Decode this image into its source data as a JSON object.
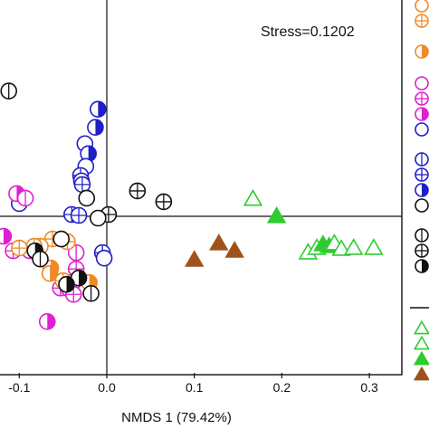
{
  "chart_data": {
    "type": "scatter",
    "title": "",
    "xlabel": "NMDS 1 (79.42%)",
    "ylabel": "",
    "annotation": "Stress=0.1202",
    "xlim": [
      -0.12,
      0.32
    ],
    "ylim": [
      -0.15,
      0.145
    ],
    "x_ticks": [
      "-0.1",
      "0.0",
      "0.1",
      "0.2",
      "0.3"
    ],
    "x_tick_values": [
      -0.1,
      0.0,
      0.1,
      0.2,
      0.3
    ],
    "reference_lines": {
      "x": 0.0,
      "y": 0.0
    },
    "grid": false,
    "legend_position": "right",
    "colors": {
      "blue": "#1f1fc8",
      "magenta": "#e020d0",
      "orange": "#f08a24",
      "black": "#111111",
      "green": "#2ecc2e",
      "brown": "#a0521c"
    },
    "series": [
      {
        "color": "blue",
        "markers": [
          {
            "x": -0.01,
            "y": 0.118,
            "marker": "half-circle"
          },
          {
            "x": -0.013,
            "y": 0.098,
            "marker": "half-circle"
          },
          {
            "x": -0.025,
            "y": 0.08,
            "marker": "circle"
          },
          {
            "x": -0.021,
            "y": 0.069,
            "marker": "half-circle"
          },
          {
            "x": -0.024,
            "y": 0.055,
            "marker": "circle"
          },
          {
            "x": -0.03,
            "y": 0.045,
            "marker": "circle-plus"
          },
          {
            "x": -0.029,
            "y": 0.039,
            "marker": "circle"
          },
          {
            "x": -0.028,
            "y": 0.035,
            "marker": "circle-plus"
          },
          {
            "x": -0.1,
            "y": 0.014,
            "marker": "circle"
          },
          {
            "x": -0.04,
            "y": 0.002,
            "marker": "circle-plus"
          },
          {
            "x": -0.032,
            "y": 0.001,
            "marker": "circle-plus"
          },
          {
            "x": -0.005,
            "y": -0.04,
            "marker": "circle-plus"
          },
          {
            "x": -0.003,
            "y": -0.046,
            "marker": "circle"
          }
        ]
      },
      {
        "color": "magenta",
        "markers": [
          {
            "x": -0.103,
            "y": 0.025,
            "marker": "half-circle"
          },
          {
            "x": -0.093,
            "y": 0.02,
            "marker": "circle-minus"
          },
          {
            "x": -0.118,
            "y": -0.022,
            "marker": "half-circle"
          },
          {
            "x": -0.107,
            "y": -0.038,
            "marker": "circle-plus"
          },
          {
            "x": -0.088,
            "y": -0.038,
            "marker": "circle-plus"
          },
          {
            "x": -0.035,
            "y": -0.04,
            "marker": "circle-minus"
          },
          {
            "x": -0.035,
            "y": -0.058,
            "marker": "circle-plus"
          },
          {
            "x": -0.038,
            "y": -0.072,
            "marker": "circle-plus"
          },
          {
            "x": -0.053,
            "y": -0.079,
            "marker": "circle-plus"
          },
          {
            "x": -0.043,
            "y": -0.08,
            "marker": "circle-plus"
          },
          {
            "x": -0.038,
            "y": -0.086,
            "marker": "circle-plus"
          },
          {
            "x": -0.068,
            "y": -0.116,
            "marker": "half-circle"
          }
        ]
      },
      {
        "color": "orange",
        "markers": [
          {
            "x": -0.062,
            "y": -0.025,
            "marker": "circle-plus"
          },
          {
            "x": -0.045,
            "y": -0.028,
            "marker": "circle-plus"
          },
          {
            "x": -0.076,
            "y": -0.033,
            "marker": "circle-minus"
          },
          {
            "x": -0.083,
            "y": -0.033,
            "marker": "circle-plus"
          },
          {
            "x": -0.1,
            "y": -0.035,
            "marker": "circle-plus"
          },
          {
            "x": -0.064,
            "y": -0.057,
            "marker": "half-circle"
          },
          {
            "x": -0.065,
            "y": -0.063,
            "marker": "half-circle"
          },
          {
            "x": -0.05,
            "y": -0.071,
            "marker": "circle-plus"
          },
          {
            "x": -0.02,
            "y": -0.073,
            "marker": "half-circle"
          }
        ]
      },
      {
        "color": "black",
        "markers": [
          {
            "x": -0.112,
            "y": 0.138,
            "marker": "circle-minus"
          },
          {
            "x": 0.035,
            "y": 0.028,
            "marker": "circle-plus"
          },
          {
            "x": 0.065,
            "y": 0.016,
            "marker": "circle-plus"
          },
          {
            "x": -0.023,
            "y": 0.02,
            "marker": "circle"
          },
          {
            "x": 0.002,
            "y": 0.002,
            "marker": "circle-plus"
          },
          {
            "x": -0.01,
            "y": -0.002,
            "marker": "circle"
          },
          {
            "x": -0.052,
            "y": -0.025,
            "marker": "circle"
          },
          {
            "x": -0.082,
            "y": -0.038,
            "marker": "half-circle"
          },
          {
            "x": -0.076,
            "y": -0.047,
            "marker": "circle-minus"
          },
          {
            "x": -0.032,
            "y": -0.068,
            "marker": "half-circle"
          },
          {
            "x": -0.046,
            "y": -0.075,
            "marker": "half-circle"
          },
          {
            "x": -0.018,
            "y": -0.085,
            "marker": "circle-minus"
          }
        ]
      },
      {
        "color": "green",
        "markers": [
          {
            "x": 0.167,
            "y": 0.019,
            "marker": "triangle-open"
          },
          {
            "x": 0.194,
            "y": 0.0,
            "marker": "triangle-filled"
          },
          {
            "x": 0.23,
            "y": -0.04,
            "marker": "triangle-open"
          },
          {
            "x": 0.24,
            "y": -0.035,
            "marker": "triangle-open"
          },
          {
            "x": 0.247,
            "y": -0.031,
            "marker": "triangle-filled"
          },
          {
            "x": 0.254,
            "y": -0.033,
            "marker": "triangle-filled"
          },
          {
            "x": 0.26,
            "y": -0.03,
            "marker": "triangle-open"
          },
          {
            "x": 0.268,
            "y": -0.036,
            "marker": "triangle-open"
          },
          {
            "x": 0.282,
            "y": -0.035,
            "marker": "triangle-open"
          },
          {
            "x": 0.305,
            "y": -0.035,
            "marker": "triangle-open"
          }
        ]
      },
      {
        "color": "brown",
        "markers": [
          {
            "x": 0.1,
            "y": -0.048,
            "marker": "triangle-filled"
          },
          {
            "x": 0.128,
            "y": -0.03,
            "marker": "triangle-filled"
          },
          {
            "x": 0.146,
            "y": -0.038,
            "marker": "triangle-filled"
          }
        ]
      }
    ],
    "legend_entries": [
      {
        "color": "orange",
        "marker": "circle"
      },
      {
        "color": "orange",
        "marker": "circle-plus"
      },
      {
        "color": "orange",
        "marker": "half-circle"
      },
      {
        "color": "magenta",
        "marker": "circle"
      },
      {
        "color": "magenta",
        "marker": "circle-plus"
      },
      {
        "color": "magenta",
        "marker": "half-circle"
      },
      {
        "color": "blue",
        "marker": "circle"
      },
      {
        "color": "blue",
        "marker": "circle-minus"
      },
      {
        "color": "blue",
        "marker": "circle-plus"
      },
      {
        "color": "blue",
        "marker": "half-circle"
      },
      {
        "color": "black",
        "marker": "circle"
      },
      {
        "color": "black",
        "marker": "circle-minus"
      },
      {
        "color": "black",
        "marker": "circle-plus"
      },
      {
        "color": "black",
        "marker": "half-circle"
      },
      {
        "color": "green",
        "marker": "triangle-open"
      },
      {
        "color": "green",
        "marker": "triangle-open"
      },
      {
        "color": "green",
        "marker": "triangle-filled"
      },
      {
        "color": "brown",
        "marker": "triangle-filled"
      }
    ]
  }
}
